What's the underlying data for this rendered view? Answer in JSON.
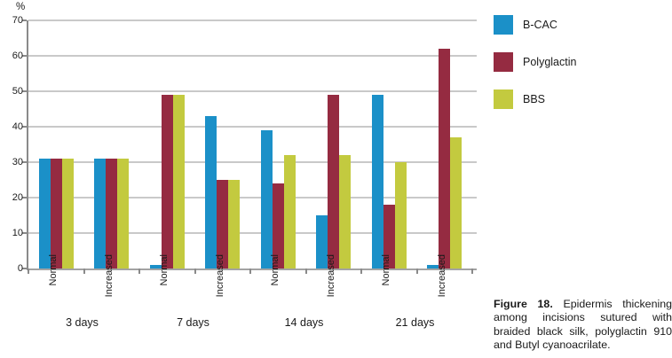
{
  "chart_data": {
    "type": "bar",
    "title": "",
    "ylabel": "%",
    "xlabel": "",
    "ylim": [
      0,
      70
    ],
    "yticks": [
      0,
      10,
      20,
      30,
      40,
      50,
      60,
      70
    ],
    "grid": true,
    "legend_position": "top-right",
    "series": [
      {
        "name": "B-CAC",
        "color": "#1b90c8"
      },
      {
        "name": "Polyglactin",
        "color": "#952b41"
      },
      {
        "name": "BBS",
        "color": "#c3ca3f"
      }
    ],
    "group_labels": [
      "3 days",
      "7 days",
      "14 days",
      "21 days"
    ],
    "slots": [
      {
        "group": "3 days",
        "label": "Normal",
        "values": [
          31,
          31,
          31
        ]
      },
      {
        "group": "3 days",
        "label": "Increased",
        "values": [
          31,
          31,
          31
        ]
      },
      {
        "group": "7 days",
        "label": "Normal",
        "values": [
          1,
          49,
          49
        ]
      },
      {
        "group": "7 days",
        "label": "Increased",
        "values": [
          43,
          25,
          25
        ]
      },
      {
        "group": "14 days",
        "label": "Normal",
        "values": [
          39,
          24,
          32
        ]
      },
      {
        "group": "14 days",
        "label": "Increased",
        "values": [
          15,
          49,
          32
        ]
      },
      {
        "group": "21 days",
        "label": "Normal",
        "values": [
          49,
          18,
          30
        ]
      },
      {
        "group": "21 days",
        "label": "Increased",
        "values": [
          1,
          62,
          37
        ]
      }
    ]
  },
  "caption": {
    "label": "Figure 18.",
    "text": " Epidermis thickening among incisions sutured with braided black silk, polyglactin 910 and Butyl cyanoacrilate."
  },
  "colors": {
    "gridline": "#c9c9c9",
    "axis": "#8a8a8a",
    "text": "#1a1a1a"
  }
}
